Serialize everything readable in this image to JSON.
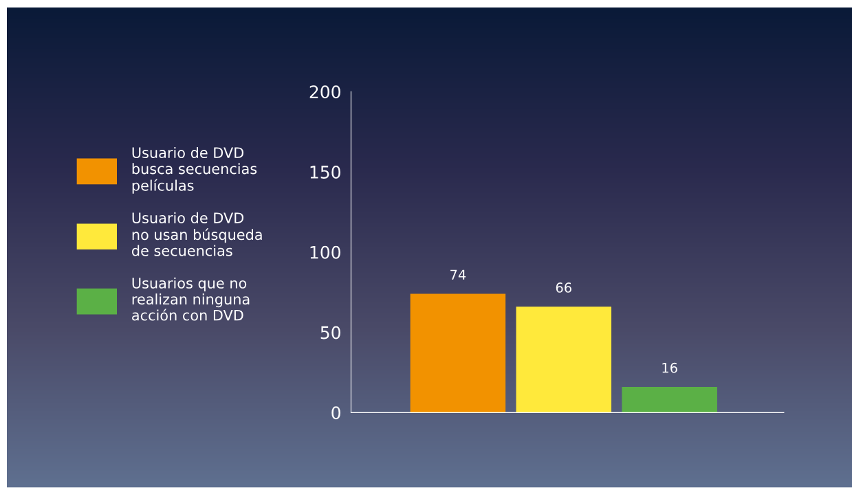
{
  "chart_data": {
    "type": "bar",
    "categories": [
      null,
      null,
      null
    ],
    "series": [
      {
        "name": "Usuario de DVD\nbusca secuencias\npelículas",
        "color": "#f29200",
        "values": [
          74,
          null,
          null
        ]
      },
      {
        "name": "Usuario de DVD\nno usan búsqueda\nde secuencias",
        "color": "#ffe93b",
        "values": [
          null,
          66,
          null
        ]
      },
      {
        "name": "Usuarios que no\nrealizan ninguna\nacción con DVD",
        "color": "#5bb046",
        "values": [
          null,
          null,
          16
        ]
      }
    ],
    "ylim": [
      0,
      200
    ],
    "yticks": [
      0,
      50,
      100,
      150,
      200
    ],
    "data_labels": true,
    "grid": false,
    "legend": "left"
  }
}
